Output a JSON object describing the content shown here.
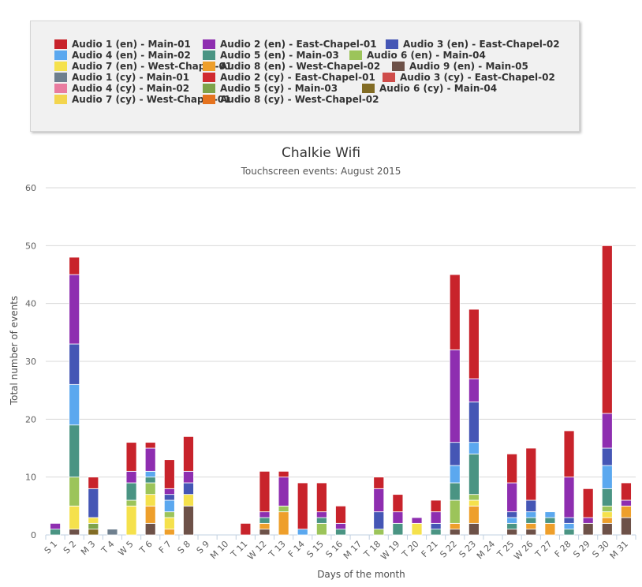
{
  "legend": [
    {
      "label": "Audio 1 (en) - Main-01",
      "color": "#c8232b"
    },
    {
      "label": "Audio 2 (en) - East-Chapel-01",
      "color": "#8e2eb0"
    },
    {
      "label": "Audio 3 (en) - East-Chapel-02",
      "color": "#4556b5"
    },
    {
      "label": "Audio 4 (en) - Main-02",
      "color": "#5ba8ef"
    },
    {
      "label": "Audio 5 (en) - Main-03",
      "color": "#4a9483"
    },
    {
      "label": "Audio 6 (en) - Main-04",
      "color": "#9cc45a"
    },
    {
      "label": "Audio 7 (en) - West-Chapel-01",
      "color": "#f5e14c"
    },
    {
      "label": "Audio 8 (en) - West-Chapel-02",
      "color": "#ee9f2b"
    },
    {
      "label": "Audio 9 (en) - Main-05",
      "color": "#6d5148"
    },
    {
      "label": "Audio 1 (cy) - Main-01",
      "color": "#6e7f8e"
    },
    {
      "label": "Audio 2 (cy) - East-Chapel-01",
      "color": "#d02a30"
    },
    {
      "label": "Audio 3 (cy) - East-Chapel-02",
      "color": "#cf4c4a"
    },
    {
      "label": "Audio 4 (cy) - Main-02",
      "color": "#e97ca0"
    },
    {
      "label": "Audio 5 (cy) - Main-03",
      "color": "#7ea34a"
    },
    {
      "label": "Audio 6 (cy) - Main-04",
      "color": "#826c24"
    },
    {
      "label": "Audio 7 (cy) - West-Chapel-01",
      "color": "#f3d54e"
    },
    {
      "label": "Audio 8 (cy) - West-Chapel-02",
      "color": "#e5731f"
    }
  ],
  "chart_data": {
    "type": "bar",
    "stacked": true,
    "title": "Chalkie Wifi",
    "subtitle": "Touchscreen events: August 2015",
    "xlabel": "Days of the month",
    "ylabel": "Total number of events",
    "ylim": [
      0,
      60
    ],
    "yticks": [
      0,
      10,
      20,
      30,
      40,
      50,
      60
    ],
    "grid": true,
    "legend_position": "top",
    "categories": [
      "S 1",
      "S 2",
      "M 3",
      "T 4",
      "W 5",
      "T 6",
      "F 7",
      "S 8",
      "S 9",
      "M 10",
      "T 11",
      "W 12",
      "T 13",
      "F 14",
      "S 15",
      "S 16",
      "M 17",
      "T 18",
      "W 19",
      "T 20",
      "F 21",
      "S 22",
      "S 23",
      "M 24",
      "T 25",
      "W 26",
      "T 27",
      "F 28",
      "S 29",
      "S 30",
      "M 31"
    ],
    "series": [
      {
        "name": "Audio 9 (en) - Main-05",
        "values": [
          0,
          1,
          0,
          0,
          0,
          2,
          0,
          5,
          0,
          0,
          0,
          1,
          0,
          0,
          0,
          0,
          0,
          0,
          0,
          0,
          0,
          1,
          2,
          0,
          1,
          1,
          0,
          0,
          2,
          2,
          3
        ]
      },
      {
        "name": "Audio 1 (cy) - Main-01",
        "values": [
          0,
          0,
          0,
          1,
          0,
          0,
          0,
          0,
          0,
          0,
          0,
          0,
          0,
          0,
          0,
          0,
          0,
          0,
          0,
          0,
          0,
          0,
          0,
          0,
          0,
          0,
          0,
          0,
          0,
          0,
          0
        ]
      },
      {
        "name": "Audio 8 (en) - West-Chapel-02",
        "values": [
          0,
          0,
          0,
          0,
          0,
          3,
          1,
          0,
          0,
          0,
          0,
          1,
          4,
          0,
          0,
          0,
          0,
          0,
          0,
          0,
          0,
          1,
          3,
          0,
          0,
          1,
          2,
          0,
          0,
          1,
          2
        ]
      },
      {
        "name": "Audio 6 (cy) - Main-04",
        "values": [
          0,
          0,
          1,
          0,
          0,
          0,
          0,
          0,
          0,
          0,
          0,
          0,
          0,
          0,
          0,
          0,
          0,
          0,
          0,
          0,
          0,
          0,
          0,
          0,
          0,
          0,
          0,
          0,
          0,
          0,
          0
        ]
      },
      {
        "name": "Audio 5 (cy) - Main-03",
        "values": [
          0,
          0,
          1,
          0,
          0,
          0,
          0,
          0,
          0,
          0,
          0,
          0,
          0,
          0,
          0,
          0,
          0,
          0,
          0,
          0,
          0,
          0,
          0,
          0,
          0,
          0,
          0,
          0,
          0,
          0,
          0
        ]
      },
      {
        "name": "Audio 7 (en) - West-Chapel-01",
        "values": [
          0,
          4,
          1,
          0,
          5,
          2,
          2,
          2,
          0,
          0,
          0,
          0,
          0,
          0,
          0,
          0,
          0,
          0,
          0,
          2,
          0,
          0,
          1,
          0,
          0,
          0,
          0,
          0,
          0,
          1,
          0
        ]
      },
      {
        "name": "Audio 6 (en) - Main-04",
        "values": [
          0,
          5,
          0,
          0,
          1,
          2,
          1,
          0,
          0,
          0,
          0,
          0,
          1,
          0,
          2,
          0,
          0,
          1,
          0,
          0,
          0,
          4,
          1,
          0,
          0,
          0,
          0,
          0,
          0,
          1,
          0
        ]
      },
      {
        "name": "Audio 5 (en) - Main-03",
        "values": [
          1,
          9,
          0,
          0,
          3,
          1,
          0,
          0,
          0,
          0,
          0,
          1,
          0,
          0,
          1,
          1,
          0,
          0,
          2,
          0,
          1,
          3,
          7,
          0,
          1,
          1,
          1,
          1,
          0,
          3,
          0
        ]
      },
      {
        "name": "Audio 4 (en) - Main-02",
        "values": [
          0,
          7,
          0,
          0,
          0,
          1,
          2,
          0,
          0,
          0,
          0,
          0,
          0,
          1,
          0,
          0,
          0,
          0,
          0,
          0,
          0,
          3,
          2,
          0,
          1,
          1,
          1,
          1,
          0,
          4,
          0
        ]
      },
      {
        "name": "Audio 3 (en) - East-Chapel-02",
        "values": [
          0,
          7,
          5,
          0,
          0,
          0,
          1,
          2,
          0,
          0,
          0,
          0,
          0,
          0,
          0,
          0,
          0,
          3,
          0,
          0,
          1,
          4,
          7,
          0,
          1,
          2,
          0,
          1,
          0,
          3,
          0
        ]
      },
      {
        "name": "Audio 2 (en) - East-Chapel-01",
        "values": [
          1,
          12,
          0,
          0,
          2,
          4,
          1,
          2,
          0,
          0,
          0,
          1,
          5,
          0,
          1,
          1,
          0,
          4,
          2,
          1,
          2,
          16,
          4,
          0,
          5,
          0,
          0,
          7,
          1,
          6,
          1
        ]
      },
      {
        "name": "Audio 1 (en) - Main-01",
        "values": [
          0,
          3,
          2,
          0,
          5,
          1,
          5,
          6,
          0,
          0,
          2,
          7,
          1,
          8,
          5,
          3,
          0,
          2,
          3,
          0,
          2,
          13,
          12,
          0,
          5,
          9,
          0,
          8,
          5,
          29,
          3
        ]
      }
    ]
  }
}
